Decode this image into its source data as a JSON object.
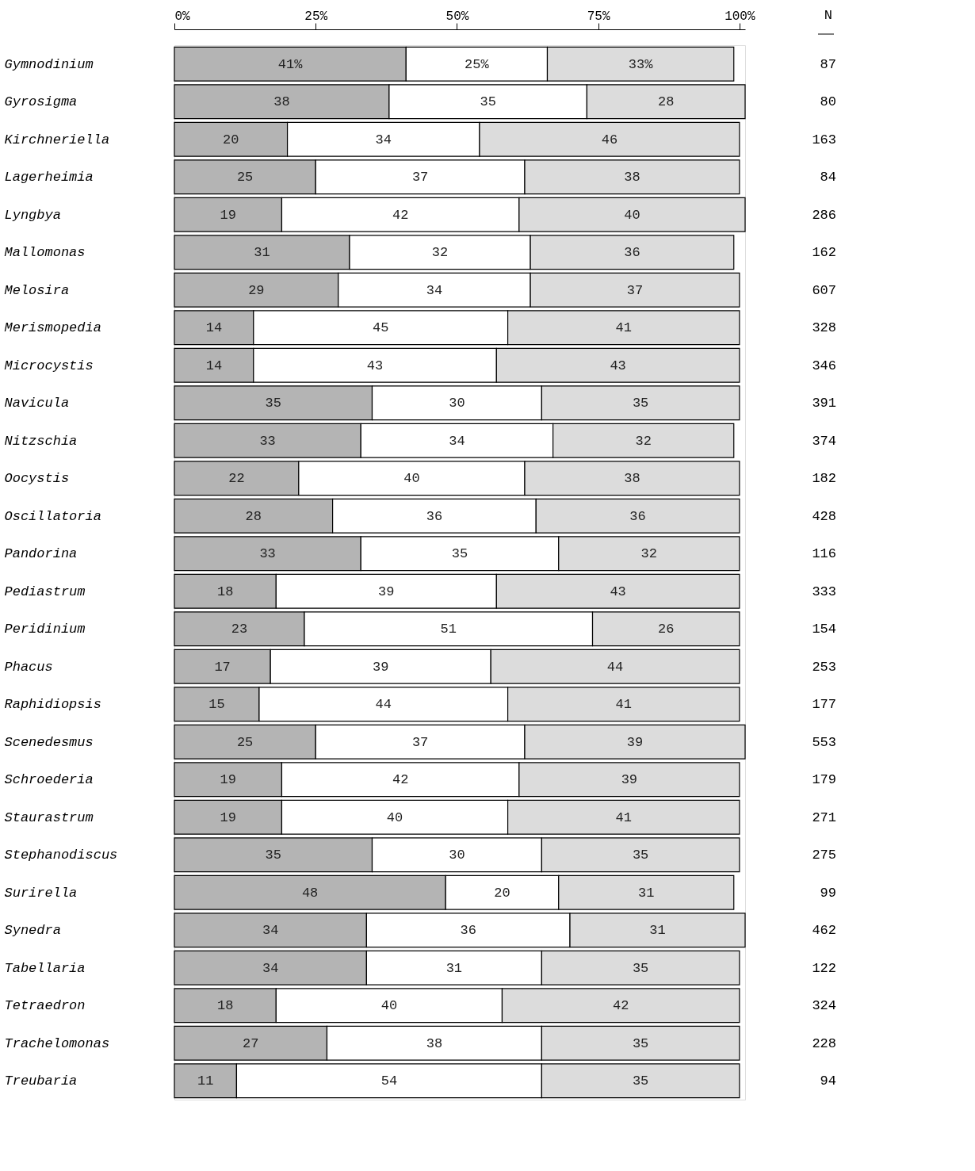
{
  "chart_data": {
    "type": "bar",
    "orientation": "horizontal",
    "stacked": true,
    "categories": [
      "Gymnodinium",
      "Gyrosigma",
      "Kirchneriella",
      "Lagerheimia",
      "Lyngbya",
      "Mallomonas",
      "Melosira",
      "Merismopedia",
      "Microcystis",
      "Navicula",
      "Nitzschia",
      "Oocystis",
      "Oscillatoria",
      "Pandorina",
      "Pediastrum",
      "Peridinium",
      "Phacus",
      "Raphidiopsis",
      "Scenedesmus",
      "Schroederia",
      "Staurastrum",
      "Stephanodiscus",
      "Surirella",
      "Synedra",
      "Tabellaria",
      "Tetraedron",
      "Trachelomonas",
      "Treubaria"
    ],
    "series": [
      {
        "color": "#b4b4b4",
        "values": [
          41,
          38,
          20,
          25,
          19,
          31,
          29,
          14,
          14,
          35,
          33,
          22,
          28,
          33,
          18,
          23,
          17,
          15,
          25,
          19,
          19,
          35,
          48,
          34,
          34,
          18,
          27,
          11
        ],
        "value_labels": [
          "41%",
          "38",
          "20",
          "25",
          "19",
          "31",
          "29",
          "14",
          "14",
          "35",
          "33",
          "22",
          "28",
          "33",
          "18",
          "23",
          "17",
          "15",
          "25",
          "19",
          "19",
          "35",
          "48",
          "34",
          "34",
          "18",
          "27",
          "11"
        ]
      },
      {
        "color": "#ffffff",
        "values": [
          25,
          35,
          34,
          37,
          42,
          32,
          34,
          45,
          43,
          30,
          34,
          40,
          36,
          35,
          39,
          51,
          39,
          44,
          37,
          42,
          40,
          30,
          20,
          36,
          31,
          40,
          38,
          54
        ],
        "value_labels": [
          "25%",
          "35",
          "34",
          "37",
          "42",
          "32",
          "34",
          "45",
          "43",
          "30",
          "34",
          "40",
          "36",
          "35",
          "39",
          "51",
          "39",
          "44",
          "37",
          "42",
          "40",
          "30",
          "20",
          "36",
          "31",
          "40",
          "38",
          "54"
        ]
      },
      {
        "color": "#dcdcdc",
        "values": [
          33,
          28,
          46,
          38,
          40,
          36,
          37,
          41,
          43,
          35,
          32,
          38,
          36,
          32,
          43,
          26,
          44,
          41,
          39,
          39,
          41,
          35,
          31,
          31,
          35,
          42,
          35,
          35
        ],
        "value_labels": [
          "33%",
          "28",
          "46",
          "38",
          "40",
          "36",
          "37",
          "41",
          "43",
          "35",
          "32",
          "38",
          "36",
          "32",
          "43",
          "26",
          "44",
          "41",
          "39",
          "39",
          "41",
          "35",
          "31",
          "31",
          "35",
          "42",
          "35",
          "35"
        ]
      }
    ],
    "xlim": [
      0,
      101
    ],
    "xticks": [
      {
        "value": 0,
        "label": "0%"
      },
      {
        "value": 25,
        "label": "25%"
      },
      {
        "value": 50,
        "label": "50%"
      },
      {
        "value": 75,
        "label": "75%"
      },
      {
        "value": 100,
        "label": "100%"
      }
    ],
    "grid": false,
    "legend": false,
    "annotations": [
      "N",
      "87",
      "80",
      "163",
      "84",
      "286",
      "162",
      "607",
      "328",
      "346",
      "391",
      "374",
      "182",
      "428",
      "116",
      "333",
      "154",
      "253",
      "177",
      "553",
      "179",
      "271",
      "275",
      "99",
      "462",
      "122",
      "324",
      "228",
      "94"
    ]
  }
}
